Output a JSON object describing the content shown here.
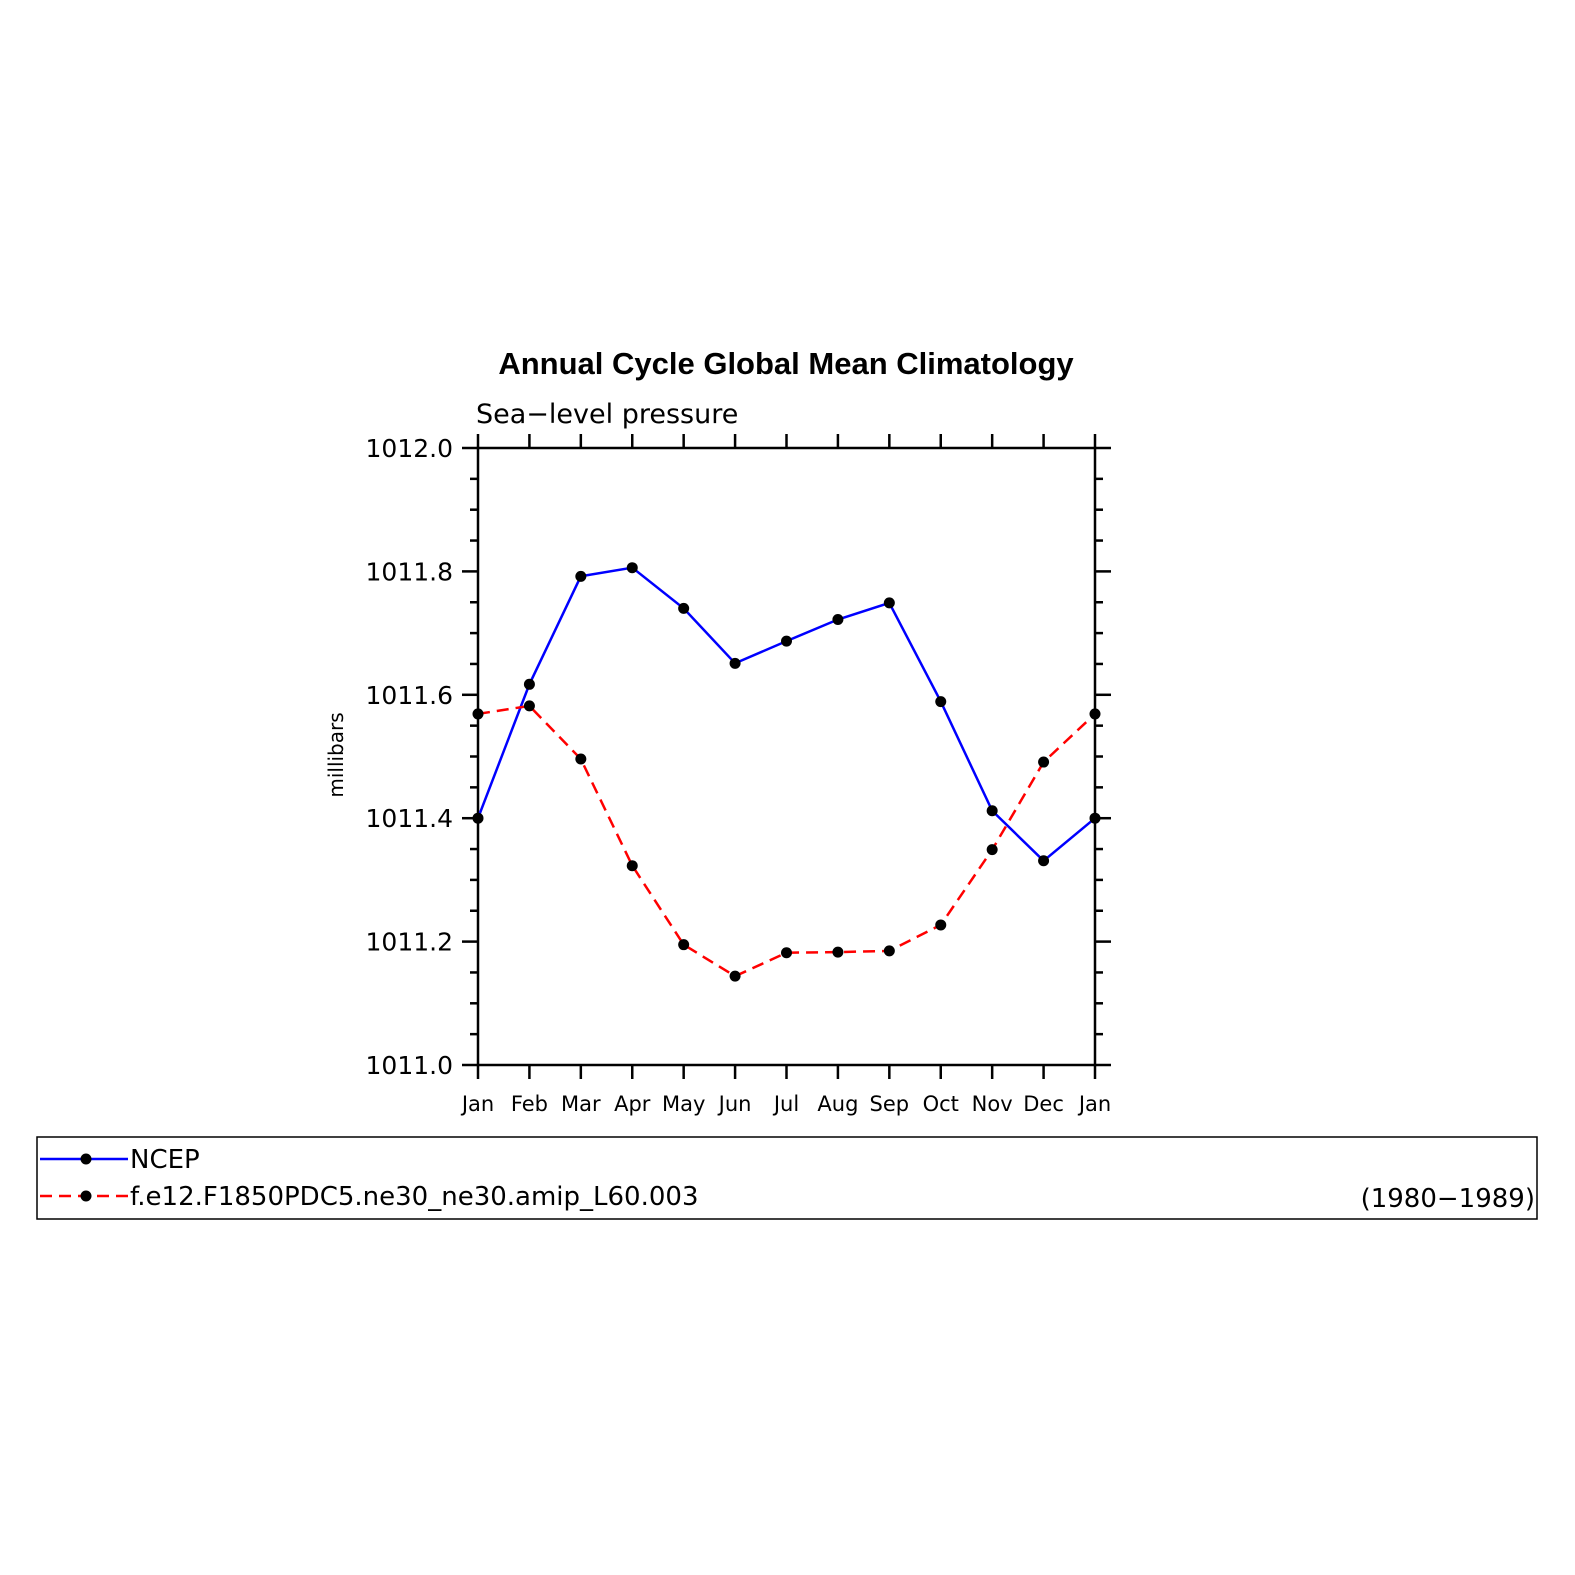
{
  "chart_data": {
    "type": "line",
    "title": "Annual Cycle Global Mean Climatology",
    "subtitle": "Sea−level pressure",
    "ylabel": "millibars",
    "xlabel": "",
    "categories": [
      "Jan",
      "Feb",
      "Mar",
      "Apr",
      "May",
      "Jun",
      "Jul",
      "Aug",
      "Sep",
      "Oct",
      "Nov",
      "Dec",
      "Jan"
    ],
    "ylim": [
      1011.0,
      1012.0
    ],
    "yticks": [
      "1011.0",
      "1011.2",
      "1011.4",
      "1011.6",
      "1011.8",
      "1012.0"
    ],
    "grid": false,
    "series": [
      {
        "name": "NCEP",
        "color": "#0000ff",
        "line_style": "solid",
        "marker": "filled-circle",
        "values": [
          1011.4,
          1011.617,
          1011.792,
          1011.806,
          1011.74,
          1011.651,
          1011.687,
          1011.722,
          1011.749,
          1011.589,
          1011.412,
          1011.331,
          1011.4
        ]
      },
      {
        "name": "f.e12.F1850PDC5.ne30_ne30.amip_L60.003",
        "color": "#ff0000",
        "line_style": "dashed",
        "marker": "filled-circle",
        "values": [
          1011.569,
          1011.582,
          1011.496,
          1011.323,
          1011.195,
          1011.144,
          1011.182,
          1011.183,
          1011.185,
          1011.227,
          1011.349,
          1011.491,
          1011.569
        ]
      }
    ],
    "legend": {
      "placement": "bottom",
      "period": "(1980−1989)"
    }
  }
}
